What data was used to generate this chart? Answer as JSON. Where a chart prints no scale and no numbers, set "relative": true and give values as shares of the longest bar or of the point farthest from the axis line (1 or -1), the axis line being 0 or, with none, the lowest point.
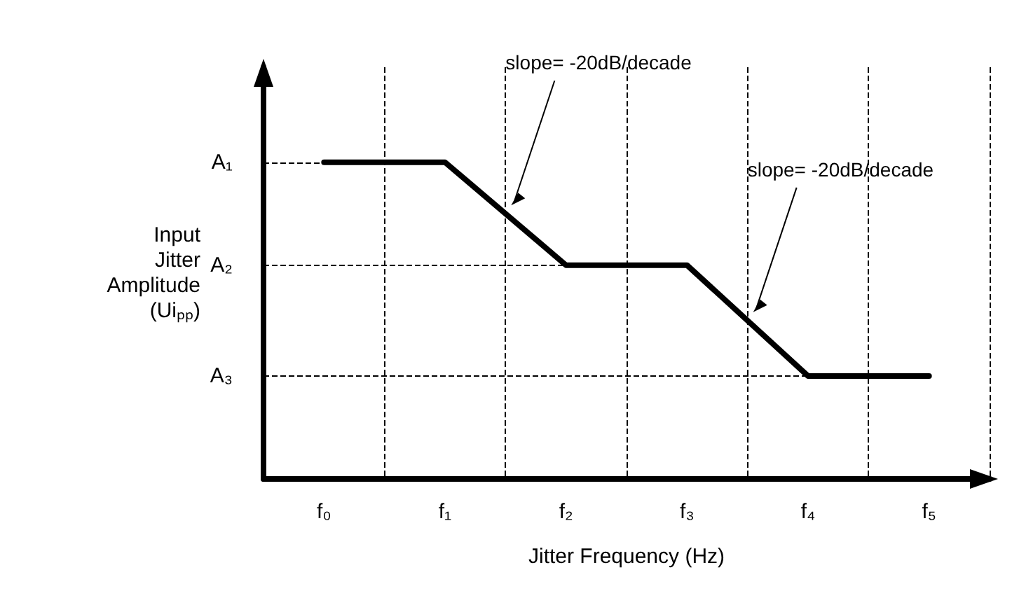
{
  "chart_data": {
    "type": "line",
    "relative": true,
    "xlabel": "Jitter Frequency (Hz)",
    "ylabel": "Input\nJitter\nAmplitude\n(Uiₚₚ)",
    "categories": [
      "f₀",
      "f₁",
      "f₂",
      "f₃",
      "f₄",
      "f₅"
    ],
    "series": [
      {
        "color": "#000000",
        "values": [
          1,
          1,
          0.675,
          0.675,
          0.325,
          0.325
        ]
      }
    ],
    "marker": "none",
    "line_style": "solid",
    "grid": "x",
    "ref_lines": [
      {
        "axis": "y",
        "value": 1,
        "label": "A₁",
        "line_style": "dashed",
        "color": "#000000"
      },
      {
        "axis": "y",
        "value": 0.675,
        "label": "A₂",
        "line_style": "dashed",
        "color": "#000000"
      },
      {
        "axis": "y",
        "value": 0.325,
        "label": "A₃",
        "line_style": "dashed",
        "color": "#000000"
      }
    ],
    "annotations": [
      "slope= -20dB/decade",
      "slope= -20dB/decade"
    ]
  }
}
